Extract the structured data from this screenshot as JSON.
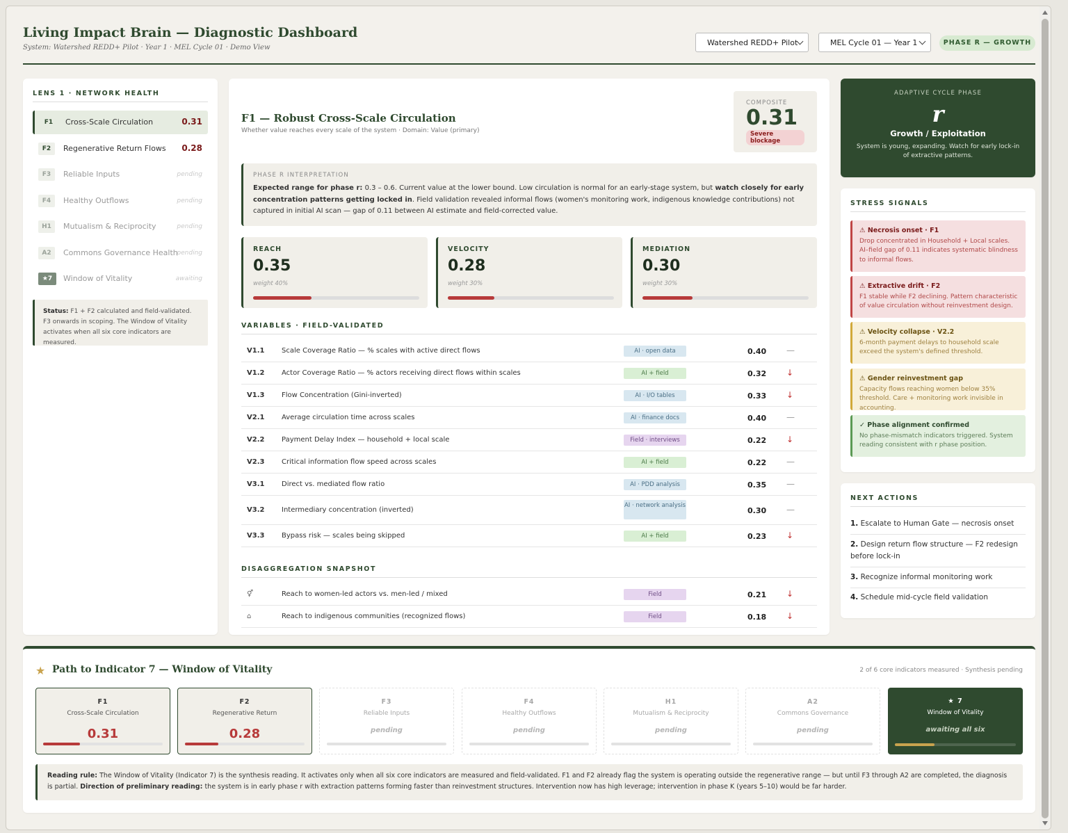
{
  "header": {
    "title": "Living Impact Brain — Diagnostic Dashboard",
    "subtitle": "System: Watershed REDD+ Pilot · Year 1 · MEL Cycle 01 · Demo View",
    "system_select": "Watershed REDD+ Pilot",
    "cycle_select": "MEL Cycle 01 — Year 1",
    "phase_badge": "PHASE R — GROWTH"
  },
  "sidebar": {
    "heading": "LENS 1 · NETWORK HEALTH",
    "items": [
      {
        "code": "F1",
        "label": "Cross-Scale Circulation",
        "value": "0.31"
      },
      {
        "code": "F2",
        "label": "Regenerative Return Flows",
        "value": "0.28"
      },
      {
        "code": "F3",
        "label": "Reliable Inputs",
        "value": "pending"
      },
      {
        "code": "F4",
        "label": "Healthy Outflows",
        "value": "pending"
      },
      {
        "code": "H1",
        "label": "Mutualism & Reciprocity",
        "value": "pending"
      },
      {
        "code": "A2",
        "label": "Commons Governance Health",
        "value": "pending"
      },
      {
        "code": "★7",
        "label": "Window of Vitality",
        "value": "awaiting"
      }
    ],
    "status_label": "Status:",
    "status_text": "F1 + F2 calculated and field-validated. F3 onwards in scoping. The Window of Vitality activates when all six core indicators are measured."
  },
  "main": {
    "title": "F1 — Robust Cross-Scale Circulation",
    "subtitle": "Whether value reaches every scale of the system · Domain: Value (primary)",
    "composite_label": "COMPOSITE",
    "composite_value": "0.31",
    "composite_badge": "Severe blockage",
    "interp_label": "PHASE R INTERPRETATION",
    "interp_b1": "Expected range for phase r:",
    "interp_t1": " 0.3 – 0.6. Current value at the lower bound. Low circulation is normal for an early-stage system, but ",
    "interp_b2": "watch closely for early concentration patterns getting locked in",
    "interp_t2": ". Field validation revealed informal flows (women's monitoring work, indigenous knowledge contributions) not captured in initial AI scan — gap of 0.11 between AI estimate and field-corrected value.",
    "subscores": [
      {
        "label": "REACH",
        "value": "0.35",
        "weight": "weight 40%",
        "fill": 0.35
      },
      {
        "label": "VELOCITY",
        "value": "0.28",
        "weight": "weight 30%",
        "fill": 0.28
      },
      {
        "label": "MEDIATION",
        "value": "0.30",
        "weight": "weight 30%",
        "fill": 0.3
      }
    ],
    "variables_heading": "VARIABLES · FIELD-VALIDATED",
    "variables": [
      {
        "code": "V1.1",
        "desc": "Scale Coverage Ratio — % scales with active direct flows",
        "source": "AI · open data",
        "value": "0.40",
        "trend": "—"
      },
      {
        "code": "V1.2",
        "desc": "Actor Coverage Ratio — % actors receiving direct flows within scales",
        "source": "AI + field",
        "value": "0.32",
        "trend": "↓"
      },
      {
        "code": "V1.3",
        "desc": "Flow Concentration (Gini-inverted)",
        "source": "AI · I/O tables",
        "value": "0.33",
        "trend": "↓"
      },
      {
        "code": "V2.1",
        "desc": "Average circulation time across scales",
        "source": "AI · finance docs",
        "value": "0.40",
        "trend": "—"
      },
      {
        "code": "V2.2",
        "desc": "Payment Delay Index — household + local scale",
        "source": "Field · interviews",
        "value": "0.22",
        "trend": "↓"
      },
      {
        "code": "V2.3",
        "desc": "Critical information flow speed across scales",
        "source": "AI + field",
        "value": "0.22",
        "trend": "—"
      },
      {
        "code": "V3.1",
        "desc": "Direct vs. mediated flow ratio",
        "source": "AI · PDD analysis",
        "value": "0.35",
        "trend": "—"
      },
      {
        "code": "V3.2",
        "desc": "Intermediary concentration (inverted)",
        "source": "AI · network analysis",
        "value": "0.30",
        "trend": "—"
      },
      {
        "code": "V3.3",
        "desc": "Bypass risk — scales being skipped",
        "source": "AI + field",
        "value": "0.23",
        "trend": "↓"
      }
    ],
    "disagg_heading": "DISAGGREGATION SNAPSHOT",
    "disagg": [
      {
        "icon": "⚥",
        "desc": "Reach to women-led actors vs. men-led / mixed",
        "source": "Field",
        "value": "0.21",
        "trend": "↓"
      },
      {
        "icon": "⌂",
        "desc": "Reach to indigenous communities (recognized flows)",
        "source": "Field",
        "value": "0.18",
        "trend": "↓"
      }
    ]
  },
  "phase_card": {
    "label": "ADAPTIVE CYCLE PHASE",
    "symbol": "r",
    "name": "Growth / Exploitation",
    "desc": "System is young, expanding. Watch for early lock-in of extractive patterns."
  },
  "stress": {
    "heading": "STRESS SIGNALS",
    "items": [
      {
        "title": "⚠ Necrosis onset · F1",
        "text": "Drop concentrated in Household + Local scales. AI–field gap of 0.11 indicates systematic blindness to informal flows."
      },
      {
        "title": "⚠ Extractive drift · F2",
        "text": "F1 stable while F2 declining. Pattern characteristic of value circulation without reinvestment design."
      },
      {
        "title": "⚠ Velocity collapse · V2.2",
        "text": "6-month payment delays to household scale exceed the system's defined threshold."
      },
      {
        "title": "⚠ Gender reinvestment gap",
        "text": "Capacity flows reaching women below 35% threshold. Care + monitoring work invisible in accounting."
      },
      {
        "title": "✓ Phase alignment confirmed",
        "text": "No phase-mismatch indicators triggered. System reading consistent with r phase position."
      }
    ]
  },
  "actions": {
    "heading": "NEXT ACTIONS",
    "items": [
      {
        "num": "1.",
        "text": "Escalate to Human Gate — necrosis onset"
      },
      {
        "num": "2.",
        "text": "Design return flow structure — F2 redesign before lock-in"
      },
      {
        "num": "3.",
        "text": "Recognize informal monitoring work"
      },
      {
        "num": "4.",
        "text": "Schedule mid-cycle field validation"
      }
    ]
  },
  "path": {
    "star": "★",
    "title": "Path to Indicator 7 — Window of Vitality",
    "meta": "2 of 6 core indicators measured · Synthesis pending",
    "cards": [
      {
        "code": "F1",
        "name": "Cross-Scale Circulation",
        "value": "0.31",
        "fill": 0.31
      },
      {
        "code": "F2",
        "name": "Regenerative Return",
        "value": "0.28",
        "fill": 0.28
      },
      {
        "code": "F3",
        "name": "Reliable Inputs",
        "value": "pending"
      },
      {
        "code": "F4",
        "name": "Healthy Outflows",
        "value": "pending"
      },
      {
        "code": "H1",
        "name": "Mutualism & Reciprocity",
        "value": "pending"
      },
      {
        "code": "A2",
        "name": "Commons Governance",
        "value": "pending"
      },
      {
        "code": "★ 7",
        "name": "Window of Vitality",
        "value": "awaiting all six",
        "fill": 0.33
      }
    ],
    "rule_b1": "Reading rule:",
    "rule_t1": " The Window of Vitality (Indicator 7) is the synthesis reading. It activates only when all six core indicators are measured and field-validated. F1 and F2 already flag the system is operating outside the regenerative range — but until F3 through A2 are completed, the diagnosis is partial. ",
    "rule_b2": "Direction of preliminary reading:",
    "rule_t2": " the system is in early phase r with extraction patterns forming faster than reinvestment structures. Intervention now has high leverage; intervention in phase K (years 5–10) would be far harder."
  },
  "colors": {
    "accent": "#2f4a2f",
    "alert": "#b73a3a",
    "background": "#f3f1ec"
  }
}
